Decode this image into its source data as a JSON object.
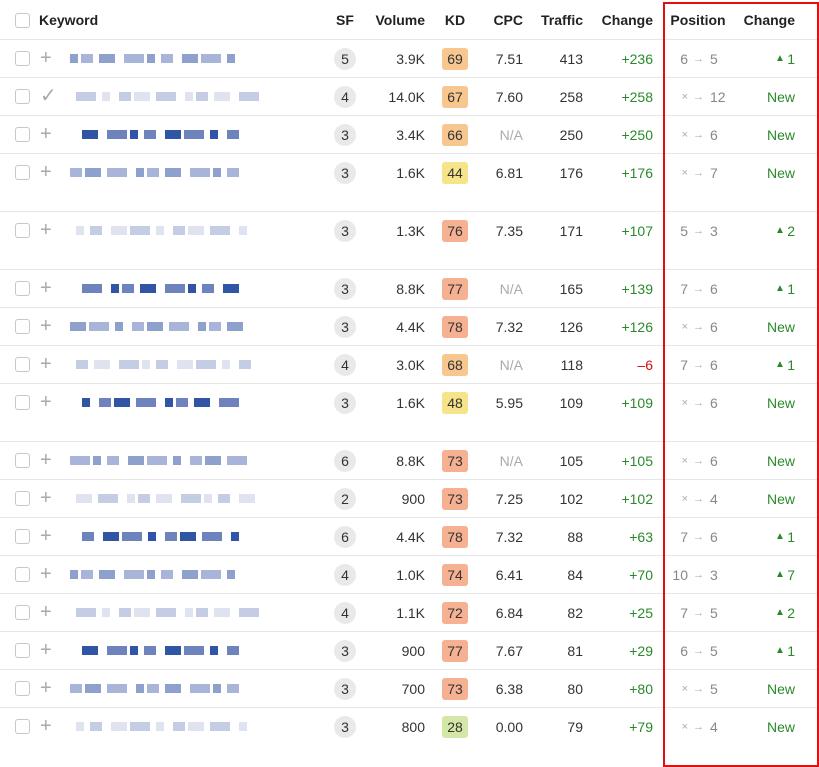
{
  "table": {
    "columns": [
      "Keyword",
      "SF",
      "Volume",
      "KD",
      "CPC",
      "Traffic",
      "Change",
      "Position",
      "Change"
    ],
    "rows": [
      {
        "icon": "plus",
        "sf": "5",
        "volume": "3.9K",
        "kd": 69,
        "cpc": "7.51",
        "traffic": "413",
        "change": "+236",
        "pos_from": "6",
        "pos_to": "5",
        "pos_change": "1"
      },
      {
        "icon": "check",
        "sf": "4",
        "volume": "14.0K",
        "kd": 67,
        "cpc": "7.60",
        "traffic": "258",
        "change": "+258",
        "pos_from": "×",
        "pos_to": "12",
        "pos_change": "New"
      },
      {
        "icon": "plus",
        "sf": "3",
        "volume": "3.4K",
        "kd": 66,
        "cpc": "N/A",
        "traffic": "250",
        "change": "+250",
        "pos_from": "×",
        "pos_to": "6",
        "pos_change": "New"
      },
      {
        "icon": "plus",
        "sf": "3",
        "volume": "1.6K",
        "kd": 44,
        "cpc": "6.81",
        "traffic": "176",
        "change": "+176",
        "pos_from": "×",
        "pos_to": "7",
        "pos_change": "New"
      },
      {
        "icon": "plus",
        "sf": "3",
        "volume": "1.3K",
        "kd": 76,
        "cpc": "7.35",
        "traffic": "171",
        "change": "+107",
        "pos_from": "5",
        "pos_to": "3",
        "pos_change": "2"
      },
      {
        "icon": "plus",
        "sf": "3",
        "volume": "8.8K",
        "kd": 77,
        "cpc": "N/A",
        "traffic": "165",
        "change": "+139",
        "pos_from": "7",
        "pos_to": "6",
        "pos_change": "1"
      },
      {
        "icon": "plus",
        "sf": "3",
        "volume": "4.4K",
        "kd": 78,
        "cpc": "7.32",
        "traffic": "126",
        "change": "+126",
        "pos_from": "×",
        "pos_to": "6",
        "pos_change": "New"
      },
      {
        "icon": "plus",
        "sf": "4",
        "volume": "3.0K",
        "kd": 68,
        "cpc": "N/A",
        "traffic": "118",
        "change": "–6",
        "pos_from": "7",
        "pos_to": "6",
        "pos_change": "1"
      },
      {
        "icon": "plus",
        "sf": "3",
        "volume": "1.6K",
        "kd": 48,
        "cpc": "5.95",
        "traffic": "109",
        "change": "+109",
        "pos_from": "×",
        "pos_to": "6",
        "pos_change": "New"
      },
      {
        "icon": "plus",
        "sf": "6",
        "volume": "8.8K",
        "kd": 73,
        "cpc": "N/A",
        "traffic": "105",
        "change": "+105",
        "pos_from": "×",
        "pos_to": "6",
        "pos_change": "New"
      },
      {
        "icon": "plus",
        "sf": "2",
        "volume": "900",
        "kd": 73,
        "cpc": "7.25",
        "traffic": "102",
        "change": "+102",
        "pos_from": "×",
        "pos_to": "4",
        "pos_change": "New"
      },
      {
        "icon": "plus",
        "sf": "6",
        "volume": "4.4K",
        "kd": 78,
        "cpc": "7.32",
        "traffic": "88",
        "change": "+63",
        "pos_from": "7",
        "pos_to": "6",
        "pos_change": "1"
      },
      {
        "icon": "plus",
        "sf": "4",
        "volume": "1.0K",
        "kd": 74,
        "cpc": "6.41",
        "traffic": "84",
        "change": "+70",
        "pos_from": "10",
        "pos_to": "3",
        "pos_change": "7"
      },
      {
        "icon": "plus",
        "sf": "4",
        "volume": "1.1K",
        "kd": 72,
        "cpc": "6.84",
        "traffic": "82",
        "change": "+25",
        "pos_from": "7",
        "pos_to": "5",
        "pos_change": "2"
      },
      {
        "icon": "plus",
        "sf": "3",
        "volume": "900",
        "kd": 77,
        "cpc": "7.67",
        "traffic": "81",
        "change": "+29",
        "pos_from": "6",
        "pos_to": "5",
        "pos_change": "1"
      },
      {
        "icon": "plus",
        "sf": "3",
        "volume": "700",
        "kd": 73,
        "cpc": "6.38",
        "traffic": "80",
        "change": "+80",
        "pos_from": "×",
        "pos_to": "5",
        "pos_change": "New"
      },
      {
        "icon": "plus",
        "sf": "3",
        "volume": "800",
        "kd": 28,
        "cpc": "0.00",
        "traffic": "79",
        "change": "+79",
        "pos_from": "×",
        "pos_to": "4",
        "pos_change": "New"
      }
    ]
  }
}
